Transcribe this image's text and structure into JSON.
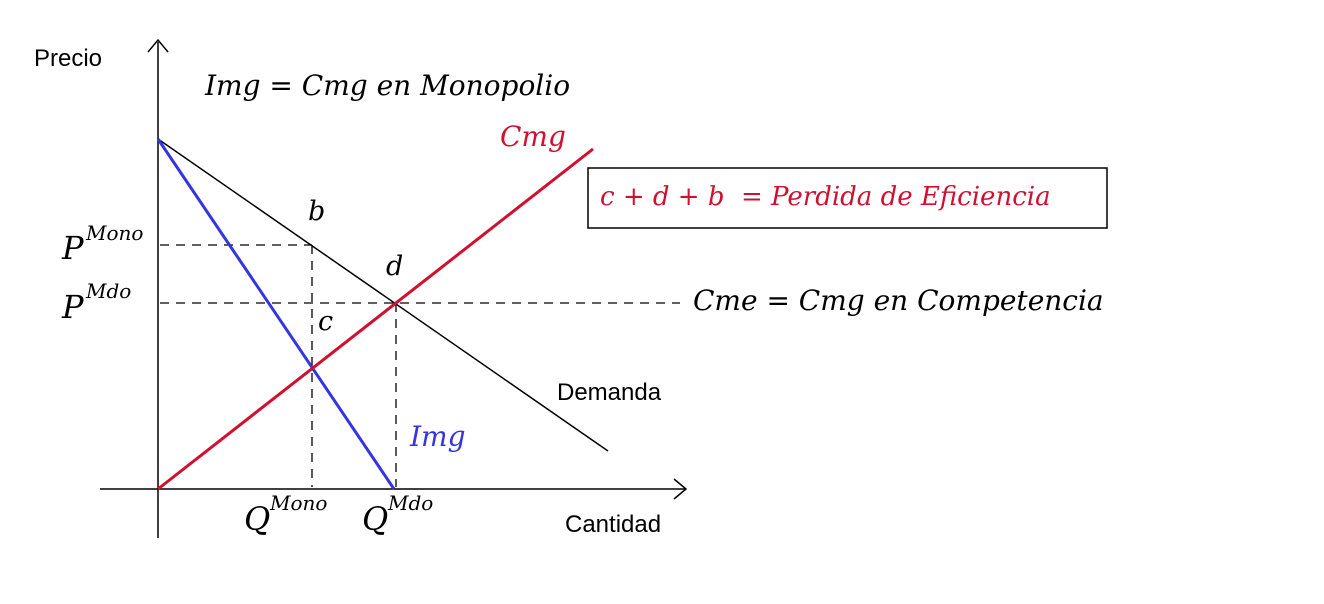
{
  "axes": {
    "y_label": "Precio",
    "x_label": "Cantidad"
  },
  "title": "Img = Cmg en Monopolio",
  "curves": {
    "demand": "Demanda",
    "marginal_cost": "Cmg",
    "marginal_revenue": "Img",
    "competition_note": "Cme = Cmg en Competencia"
  },
  "points": {
    "b": "b",
    "c": "c",
    "d": "d"
  },
  "ticks": {
    "p_mono_base": "P",
    "p_mono_sup": "Mono",
    "p_mdo_base": "P",
    "p_mdo_sup": "Mdo",
    "q_mono_base": "Q",
    "q_mono_sup": "Mono",
    "q_mdo_base": "Q",
    "q_mdo_sup": "Mdo"
  },
  "box": {
    "text": "c + d + b  = Perdida de Eficiencia"
  },
  "colors": {
    "red": "#d0102e",
    "blue": "#3535e0",
    "black": "#000000"
  }
}
